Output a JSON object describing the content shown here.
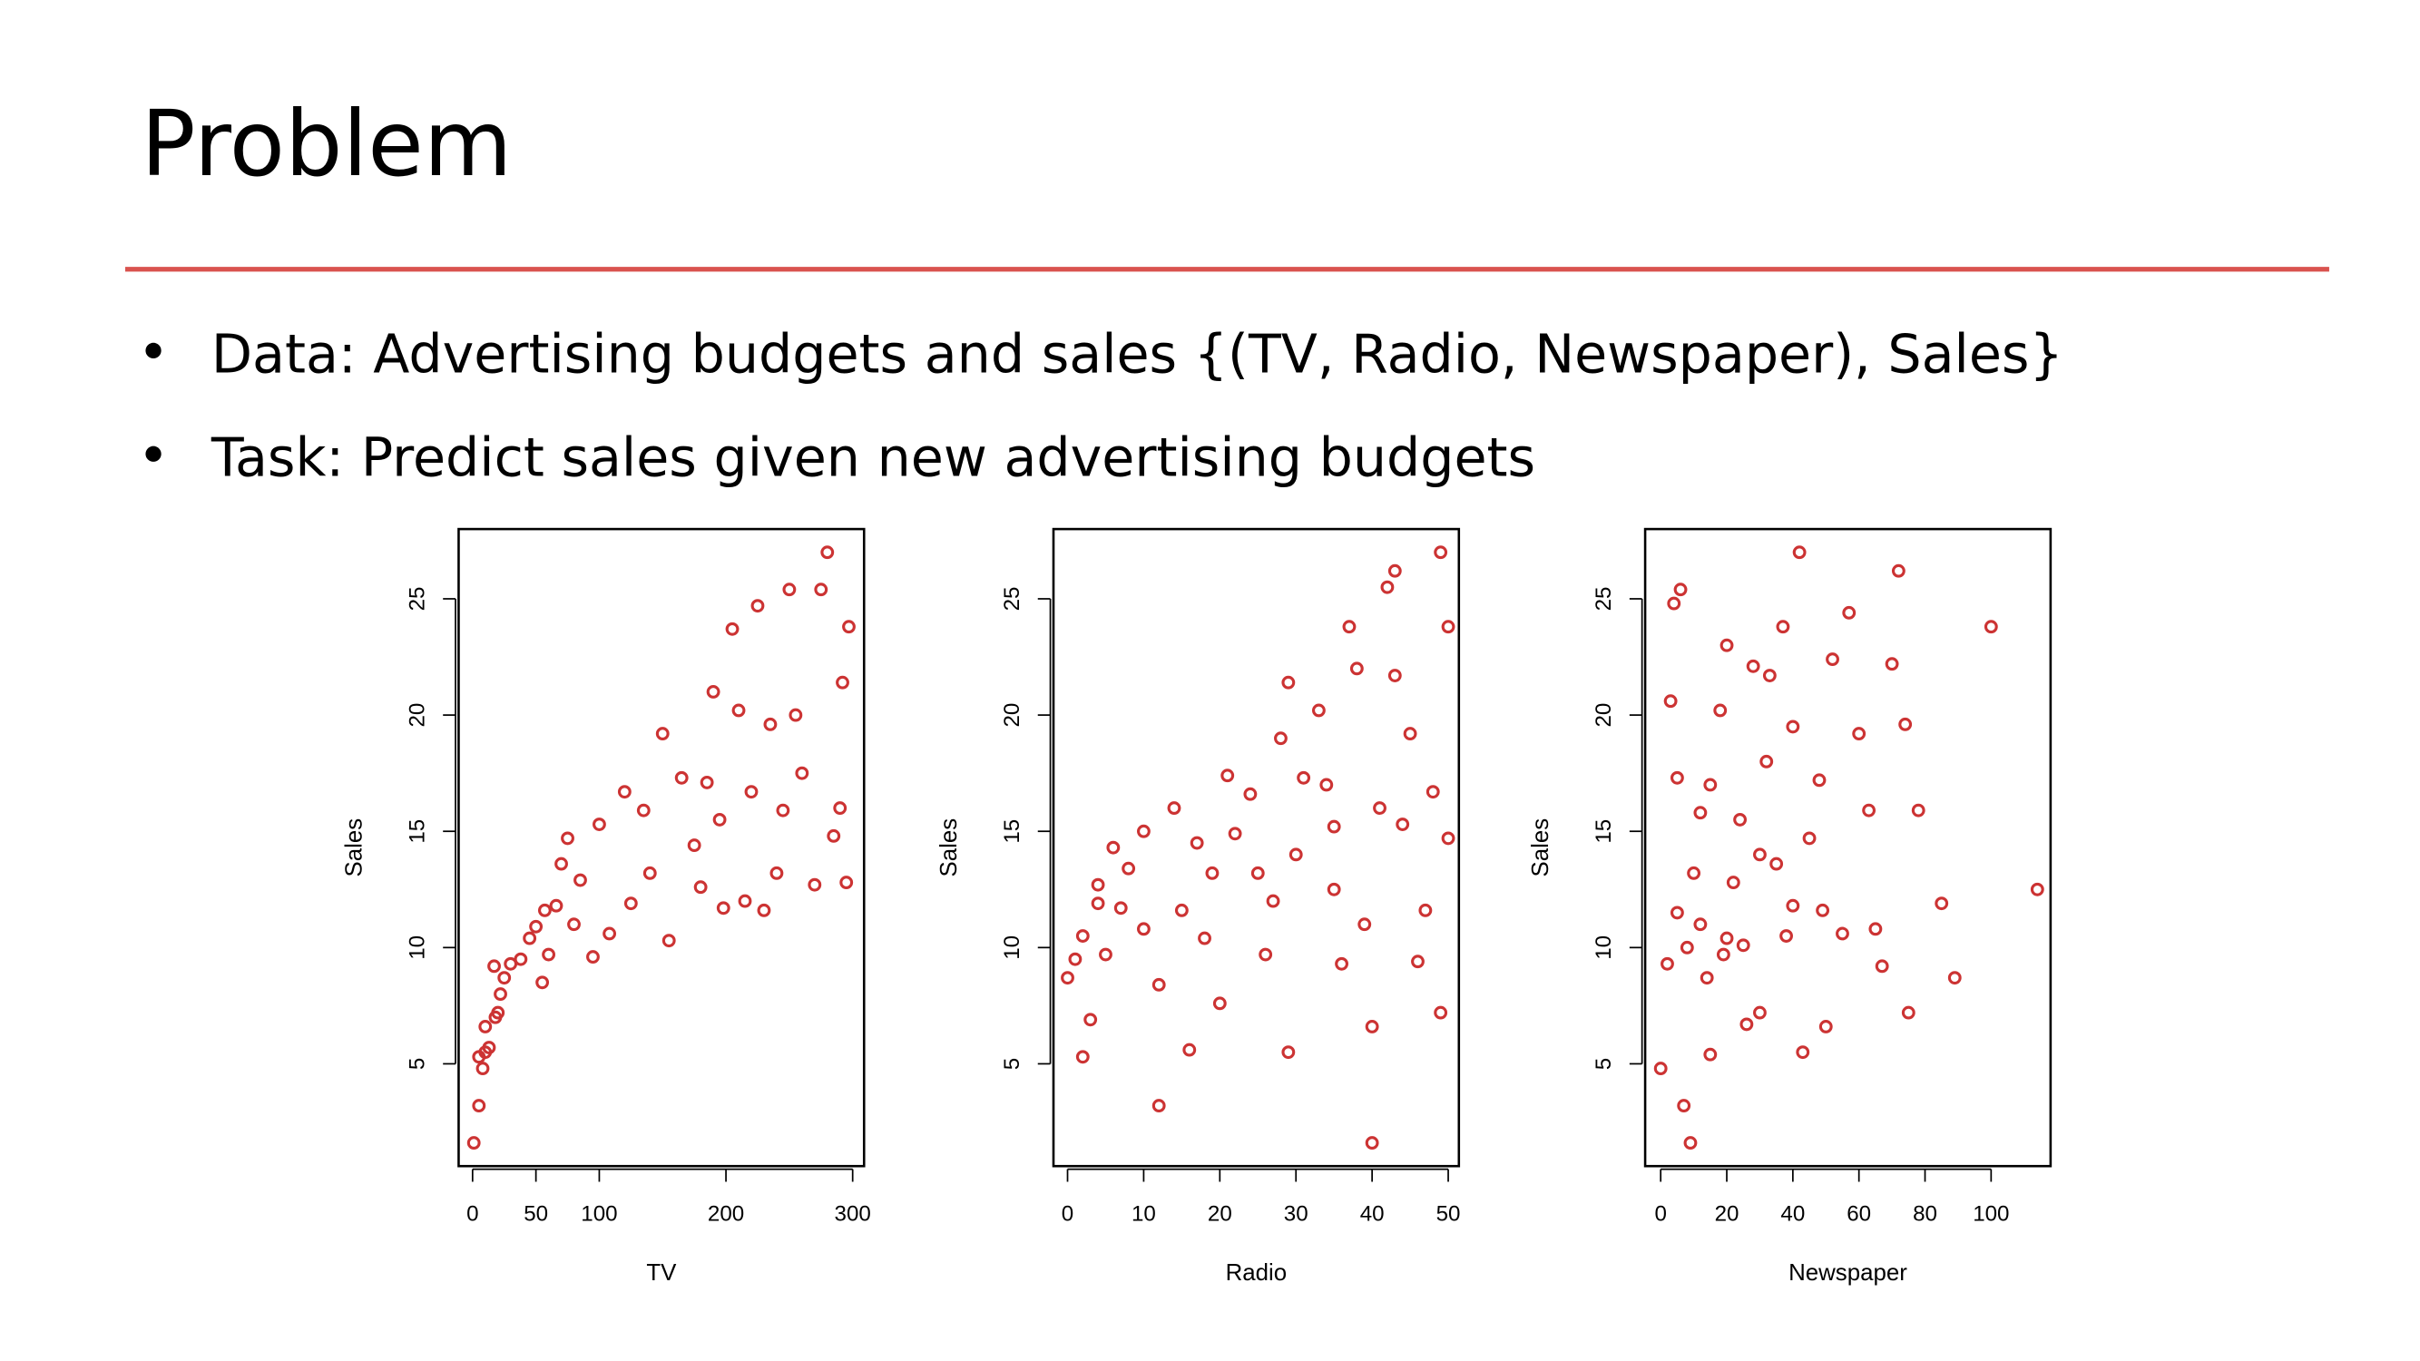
{
  "title": "Problem",
  "bullets": [
    "Data: Advertising budgets and sales {(TV, Radio, Newspaper), Sales}",
    "Task: Predict sales given new advertising budgets"
  ],
  "chart_data": [
    {
      "type": "scatter",
      "x_label": "TV",
      "y_label": "Sales",
      "color": "#cc3333",
      "xlim": [
        -11,
        309
      ],
      "ylim": [
        0.6,
        28
      ],
      "xticks": [
        0,
        50,
        100,
        200,
        300
      ],
      "yticks": [
        5,
        10,
        15,
        20,
        25
      ],
      "x": [
        1,
        5,
        5,
        8,
        10,
        13,
        10,
        18,
        20,
        22,
        25,
        30,
        17,
        38,
        45,
        50,
        55,
        60,
        57,
        66,
        70,
        75,
        80,
        85,
        95,
        100,
        108,
        120,
        125,
        135,
        140,
        150,
        155,
        165,
        175,
        180,
        185,
        190,
        195,
        198,
        205,
        210,
        215,
        220,
        225,
        230,
        235,
        240,
        245,
        250,
        255,
        260,
        270,
        275,
        280,
        285,
        290,
        292,
        295,
        297
      ],
      "y": [
        1.6,
        3.2,
        5.3,
        4.8,
        5.5,
        5.7,
        6.6,
        7,
        7.2,
        8,
        8.7,
        9.3,
        9.2,
        9.5,
        10.4,
        10.9,
        8.5,
        9.7,
        11.6,
        11.8,
        13.6,
        14.7,
        11,
        12.9,
        9.6,
        15.3,
        10.6,
        16.7,
        11.9,
        15.9,
        13.2,
        19.2,
        10.3,
        17.3,
        14.4,
        12.6,
        17.1,
        21,
        15.5,
        11.7,
        23.7,
        20.2,
        12,
        16.7,
        24.7,
        11.6,
        19.6,
        13.2,
        15.9,
        25.4,
        20,
        17.5,
        12.7,
        25.4,
        27,
        14.8,
        16,
        21.4,
        12.8,
        23.8
      ]
    },
    {
      "type": "scatter",
      "x_label": "Radio",
      "y_label": "Sales",
      "color": "#cc3333",
      "xlim": [
        -1.85,
        51.4
      ],
      "ylim": [
        0.6,
        28
      ],
      "xticks": [
        0,
        10,
        20,
        30,
        40,
        50
      ],
      "yticks": [
        5,
        10,
        15,
        20,
        25
      ],
      "x": [
        0,
        1,
        2,
        2,
        3,
        4,
        4,
        5,
        7,
        8,
        10,
        10,
        12,
        12,
        14,
        15,
        16,
        17,
        19,
        20,
        21,
        22,
        24,
        26,
        27,
        28,
        29,
        29,
        30,
        31,
        33,
        34,
        35,
        36,
        37,
        38,
        39,
        40,
        40,
        41,
        42,
        43,
        44,
        45,
        46,
        47,
        48,
        49,
        49,
        50,
        50,
        43,
        35,
        25,
        18,
        6
      ],
      "y": [
        8.7,
        9.5,
        10.5,
        5.3,
        6.9,
        11.9,
        12.7,
        9.7,
        11.7,
        13.4,
        10.8,
        15,
        3.2,
        8.4,
        16,
        11.6,
        5.6,
        14.5,
        13.2,
        7.6,
        17.4,
        14.9,
        16.6,
        9.7,
        12,
        19,
        21.4,
        5.5,
        14,
        17.3,
        20.2,
        17,
        15.2,
        9.3,
        23.8,
        22,
        11,
        1.6,
        6.6,
        16,
        25.5,
        26.2,
        15.3,
        19.2,
        9.4,
        11.6,
        16.7,
        27,
        7.2,
        23.8,
        14.7,
        21.7,
        12.5,
        13.2,
        10.4,
        14.3
      ]
    },
    {
      "type": "scatter",
      "x_label": "Newspaper",
      "y_label": "Sales",
      "color": "#cc3333",
      "xlim": [
        -4.7,
        118
      ],
      "ylim": [
        0.6,
        28
      ],
      "xticks": [
        0,
        20,
        40,
        60,
        80,
        100
      ],
      "yticks": [
        5,
        10,
        15,
        20,
        25
      ],
      "x": [
        0,
        2,
        3,
        4,
        5,
        6,
        7,
        8,
        9,
        10,
        12,
        14,
        15,
        18,
        19,
        20,
        22,
        25,
        26,
        28,
        30,
        32,
        33,
        35,
        37,
        38,
        40,
        42,
        43,
        45,
        48,
        49,
        50,
        52,
        55,
        57,
        60,
        63,
        65,
        67,
        70,
        72,
        74,
        75,
        78,
        85,
        89,
        100,
        114,
        5,
        12,
        20,
        30,
        40,
        15,
        24
      ],
      "y": [
        4.8,
        9.3,
        20.6,
        24.8,
        17.3,
        25.4,
        3.2,
        10,
        1.6,
        13.2,
        15.8,
        8.7,
        17,
        20.2,
        9.7,
        23,
        12.8,
        10.1,
        6.7,
        22.1,
        14,
        18,
        21.7,
        13.6,
        23.8,
        10.5,
        19.5,
        27,
        5.5,
        14.7,
        17.2,
        11.6,
        6.6,
        22.4,
        10.6,
        24.4,
        19.2,
        15.9,
        10.8,
        9.2,
        22.2,
        26.2,
        19.6,
        7.2,
        15.9,
        11.9,
        8.7,
        23.8,
        12.5,
        11.5,
        11,
        10.4,
        7.2,
        11.8,
        5.4,
        15.5
      ]
    }
  ]
}
